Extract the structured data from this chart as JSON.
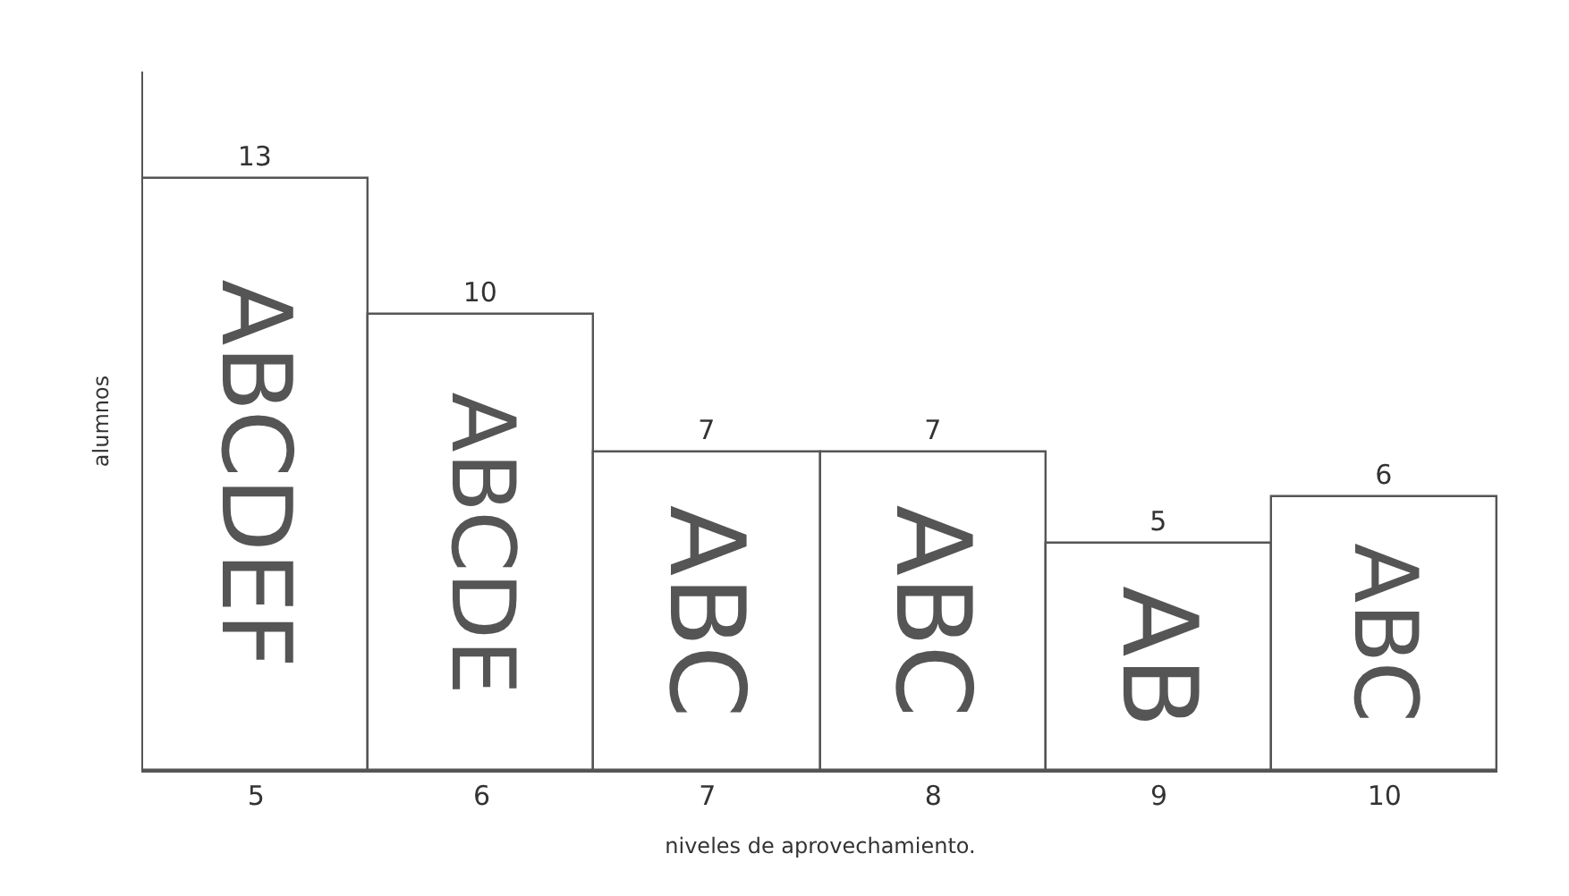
{
  "chart_data": {
    "type": "bar",
    "xlabel": "niveles de aprovechamiento.",
    "ylabel": "alumnos",
    "categories": [
      "5",
      "6",
      "7",
      "8",
      "9",
      "10"
    ],
    "values": [
      13,
      10,
      7,
      7,
      5,
      6
    ],
    "color": "#ffffff",
    "data_labels": true,
    "annotations": [
      "ABCDEF",
      "ABCDE",
      "ABC",
      "ABC",
      "AB",
      "ABC"
    ]
  }
}
